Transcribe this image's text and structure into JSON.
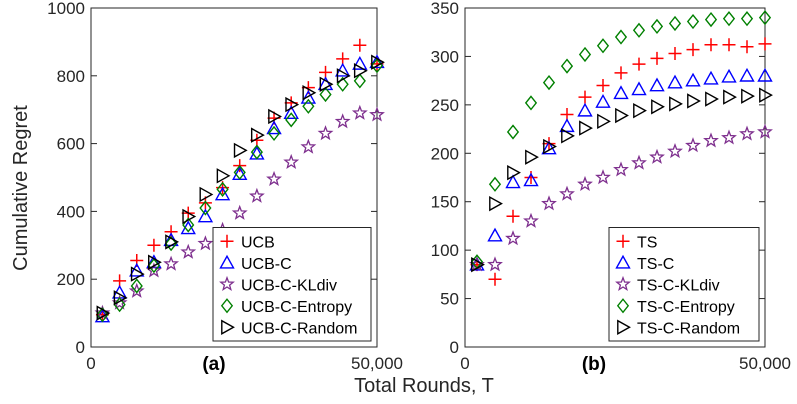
{
  "figure": {
    "xlabel": "Total Rounds, T",
    "ylabel": "Cumulative Regret"
  },
  "chart_data": [
    {
      "type": "scatter",
      "panel_label": "(a)",
      "xlim": [
        0,
        50000
      ],
      "ylim": [
        0,
        1000
      ],
      "xticks": [
        0,
        50000
      ],
      "xtick_labels": [
        "0",
        "50,000"
      ],
      "yticks": [
        0,
        200,
        400,
        600,
        800,
        1000
      ],
      "ytick_labels": [
        "0",
        "200",
        "400",
        "600",
        "800",
        "1000"
      ],
      "legend_position": "bottom-right",
      "series": [
        {
          "name": "UCB",
          "marker": "plus",
          "color": "#ff0000",
          "x": [
            2000,
            5000,
            8000,
            11000,
            14000,
            17000,
            20000,
            23000,
            26000,
            29000,
            32000,
            35000,
            38000,
            41000,
            44000,
            47000,
            50000
          ],
          "y": [
            95,
            195,
            255,
            300,
            340,
            395,
            425,
            470,
            535,
            610,
            675,
            720,
            765,
            810,
            850,
            890,
            835
          ]
        },
        {
          "name": "UCB-C",
          "marker": "triangle-up",
          "color": "#0000ff",
          "x": [
            2000,
            5000,
            8000,
            11000,
            14000,
            17000,
            20000,
            23000,
            26000,
            29000,
            32000,
            35000,
            38000,
            41000,
            44000,
            47000,
            50000
          ],
          "y": [
            90,
            160,
            225,
            250,
            315,
            350,
            385,
            450,
            510,
            570,
            645,
            690,
            735,
            775,
            815,
            835,
            840
          ]
        },
        {
          "name": "UCB-C-KLdiv",
          "marker": "star",
          "color": "#7e2f8e",
          "x": [
            2000,
            5000,
            8000,
            11000,
            14000,
            17000,
            20000,
            23000,
            26000,
            29000,
            32000,
            35000,
            38000,
            41000,
            44000,
            47000,
            50000
          ],
          "y": [
            100,
            130,
            165,
            225,
            245,
            280,
            305,
            345,
            395,
            445,
            495,
            545,
            590,
            630,
            665,
            690,
            685
          ]
        },
        {
          "name": "UCB-C-Entropy",
          "marker": "diamond",
          "color": "#008000",
          "x": [
            2000,
            5000,
            8000,
            11000,
            14000,
            17000,
            20000,
            23000,
            26000,
            29000,
            32000,
            35000,
            38000,
            41000,
            44000,
            47000,
            50000
          ],
          "y": [
            95,
            125,
            180,
            240,
            305,
            360,
            410,
            465,
            515,
            575,
            630,
            670,
            710,
            745,
            775,
            785,
            830
          ]
        },
        {
          "name": "UCB-C-Random",
          "marker": "triangle-right",
          "color": "#000000",
          "x": [
            2000,
            5000,
            8000,
            11000,
            14000,
            17000,
            20000,
            23000,
            26000,
            29000,
            32000,
            35000,
            38000,
            41000,
            44000,
            47000,
            50000
          ],
          "y": [
            100,
            145,
            215,
            250,
            310,
            385,
            450,
            505,
            580,
            625,
            680,
            715,
            750,
            775,
            800,
            815,
            840
          ]
        }
      ]
    },
    {
      "type": "scatter",
      "panel_label": "(b)",
      "xlim": [
        0,
        50000
      ],
      "ylim": [
        0,
        350
      ],
      "xticks": [
        0,
        50000
      ],
      "xtick_labels": [
        "0",
        "50,000"
      ],
      "yticks": [
        0,
        50,
        100,
        150,
        200,
        250,
        300,
        350
      ],
      "ytick_labels": [
        "0",
        "50",
        "100",
        "150",
        "200",
        "250",
        "300",
        "350"
      ],
      "legend_position": "bottom-right",
      "series": [
        {
          "name": "TS",
          "marker": "plus",
          "color": "#ff0000",
          "x": [
            2000,
            5000,
            8000,
            11000,
            14000,
            17000,
            20000,
            23000,
            26000,
            29000,
            32000,
            35000,
            38000,
            41000,
            44000,
            47000,
            50000
          ],
          "y": [
            85,
            70,
            135,
            175,
            210,
            240,
            258,
            270,
            283,
            292,
            298,
            303,
            307,
            312,
            312,
            310,
            313
          ]
        },
        {
          "name": "TS-C",
          "marker": "triangle-up",
          "color": "#0000ff",
          "x": [
            2000,
            5000,
            8000,
            11000,
            14000,
            17000,
            20000,
            23000,
            26000,
            29000,
            32000,
            35000,
            38000,
            41000,
            44000,
            47000,
            50000
          ],
          "y": [
            85,
            115,
            170,
            172,
            205,
            228,
            244,
            253,
            262,
            266,
            270,
            273,
            275,
            277,
            279,
            280,
            280
          ]
        },
        {
          "name": "TS-C-KLdiv",
          "marker": "star",
          "color": "#7e2f8e",
          "x": [
            2000,
            5000,
            8000,
            11000,
            14000,
            17000,
            20000,
            23000,
            26000,
            29000,
            32000,
            35000,
            38000,
            41000,
            44000,
            47000,
            50000
          ],
          "y": [
            85,
            85,
            112,
            130,
            148,
            158,
            168,
            175,
            183,
            190,
            196,
            202,
            208,
            213,
            216,
            220,
            222
          ]
        },
        {
          "name": "TS-C-Entropy",
          "marker": "diamond",
          "color": "#008000",
          "x": [
            2000,
            5000,
            8000,
            11000,
            14000,
            17000,
            20000,
            23000,
            26000,
            29000,
            32000,
            35000,
            38000,
            41000,
            44000,
            47000,
            50000
          ],
          "y": [
            88,
            168,
            222,
            252,
            273,
            290,
            302,
            311,
            320,
            327,
            331,
            334,
            336,
            338,
            339,
            339,
            340
          ]
        },
        {
          "name": "TS-C-Random",
          "marker": "triangle-right",
          "color": "#000000",
          "x": [
            2000,
            5000,
            8000,
            11000,
            14000,
            17000,
            20000,
            23000,
            26000,
            29000,
            32000,
            35000,
            38000,
            41000,
            44000,
            47000,
            50000
          ],
          "y": [
            85,
            148,
            180,
            196,
            207,
            218,
            226,
            233,
            239,
            244,
            248,
            251,
            254,
            256,
            258,
            259,
            260
          ]
        }
      ]
    }
  ]
}
